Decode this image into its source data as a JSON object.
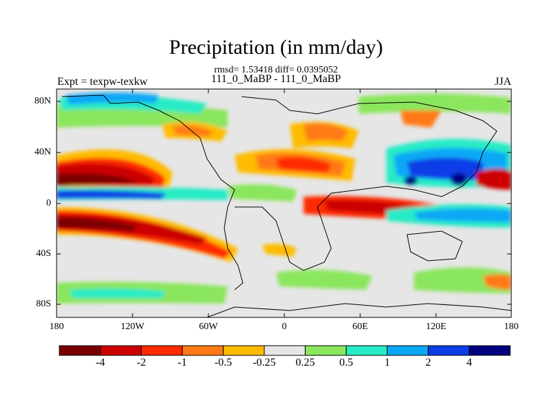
{
  "title": "Precipitation (in mm/day)",
  "subtitle": "rmsd= 1.53418 diff= 0.0395052",
  "case_line": "111_0_MaBP - 111_0_MaBP",
  "left_label": "Expt = texpw-texkw",
  "right_label": "JJA",
  "lat_ticks": [
    "80N",
    "40N",
    "0",
    "40S",
    "80S"
  ],
  "lon_ticks": [
    "180",
    "120W",
    "60W",
    "0",
    "60E",
    "120E",
    "180"
  ],
  "colorbar": {
    "labels": [
      "-4",
      "-2",
      "-1",
      "-0.5",
      "-0.25",
      "0.25",
      "0.5",
      "1",
      "2",
      "4"
    ],
    "colors": [
      "#7a0000",
      "#cc0000",
      "#ff2a00",
      "#ff7a14",
      "#ffbb00",
      "#e6e6e6",
      "#8ae65c",
      "#26ebc6",
      "#0aa8f5",
      "#0a3de6",
      "#000080"
    ]
  }
}
